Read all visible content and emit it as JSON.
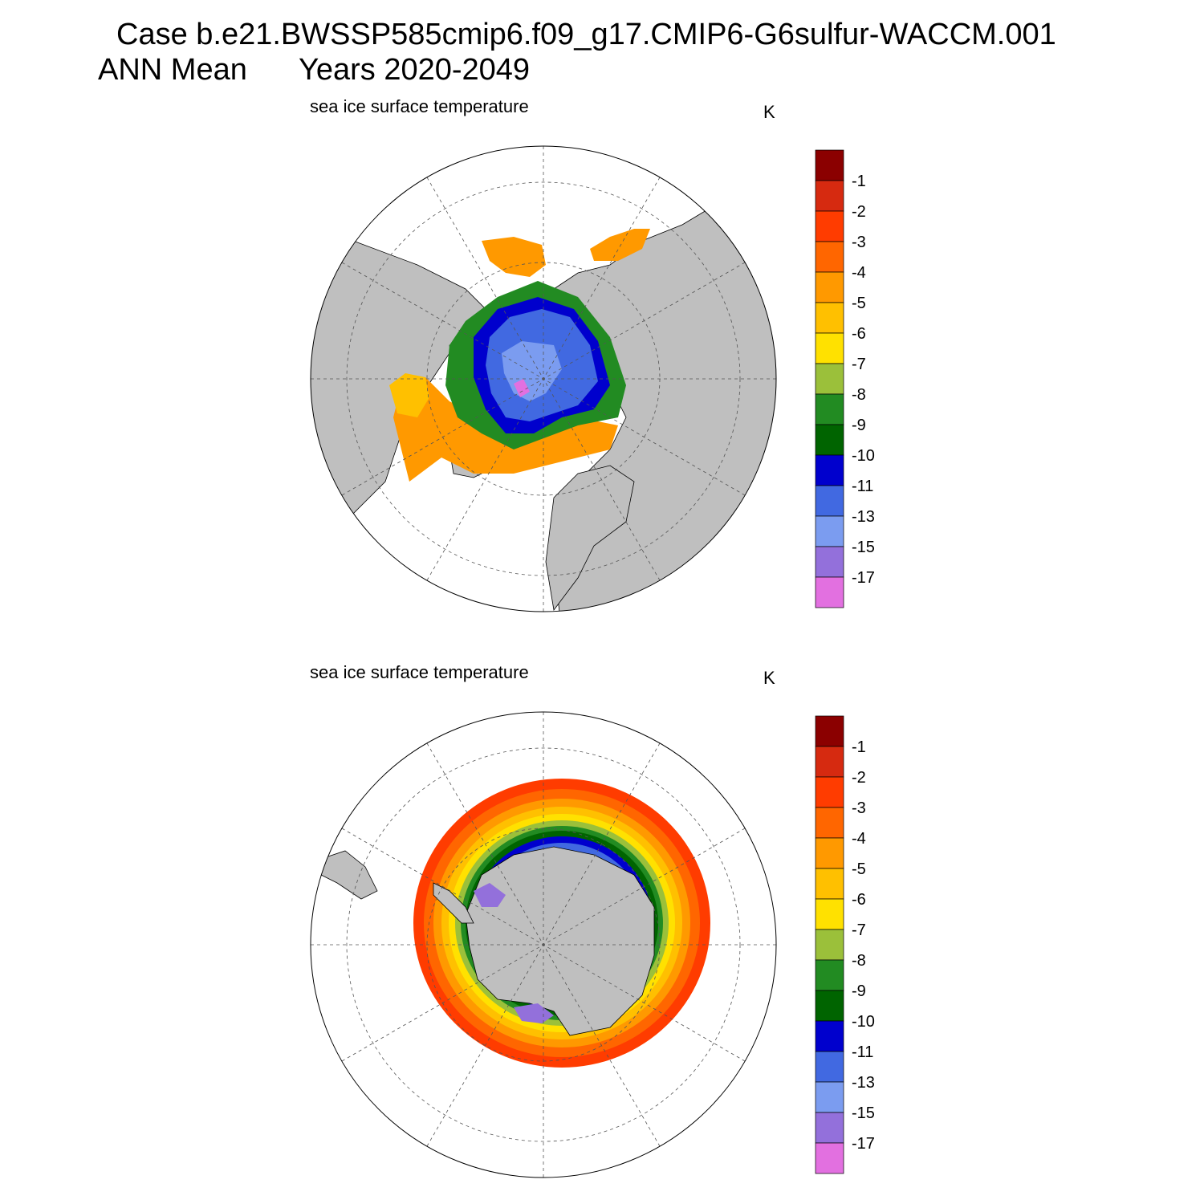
{
  "header": {
    "case_line": "Case b.e21.BWSSP585cmip6.f09_g17.CMIP6-G6sulfur-WACCM.001",
    "season": "ANN Mean",
    "years": "Years 2020-2049"
  },
  "panels": [
    {
      "title": "sea ice surface temperature",
      "units": "K",
      "hemisphere": "north"
    },
    {
      "title": "sea ice surface temperature",
      "units": "K",
      "hemisphere": "south"
    }
  ],
  "colorbar": {
    "labels": [
      "-1",
      "-2",
      "-3",
      "-4",
      "-5",
      "-6",
      "-7",
      "-8",
      "-9",
      "-10",
      "-11",
      "-13",
      "-15",
      "-17"
    ],
    "colors": [
      "#8b0000",
      "#d62a10",
      "#ff3c00",
      "#ff6600",
      "#ff9900",
      "#ffc000",
      "#ffe100",
      "#9bc03a",
      "#228b22",
      "#006400",
      "#0000cd",
      "#4169e1",
      "#7b9cf0",
      "#9370db",
      "#e270e0"
    ]
  },
  "colors": {
    "land": "#bfbfbf",
    "ocean": "#ffffff",
    "grid": "#555555"
  }
}
